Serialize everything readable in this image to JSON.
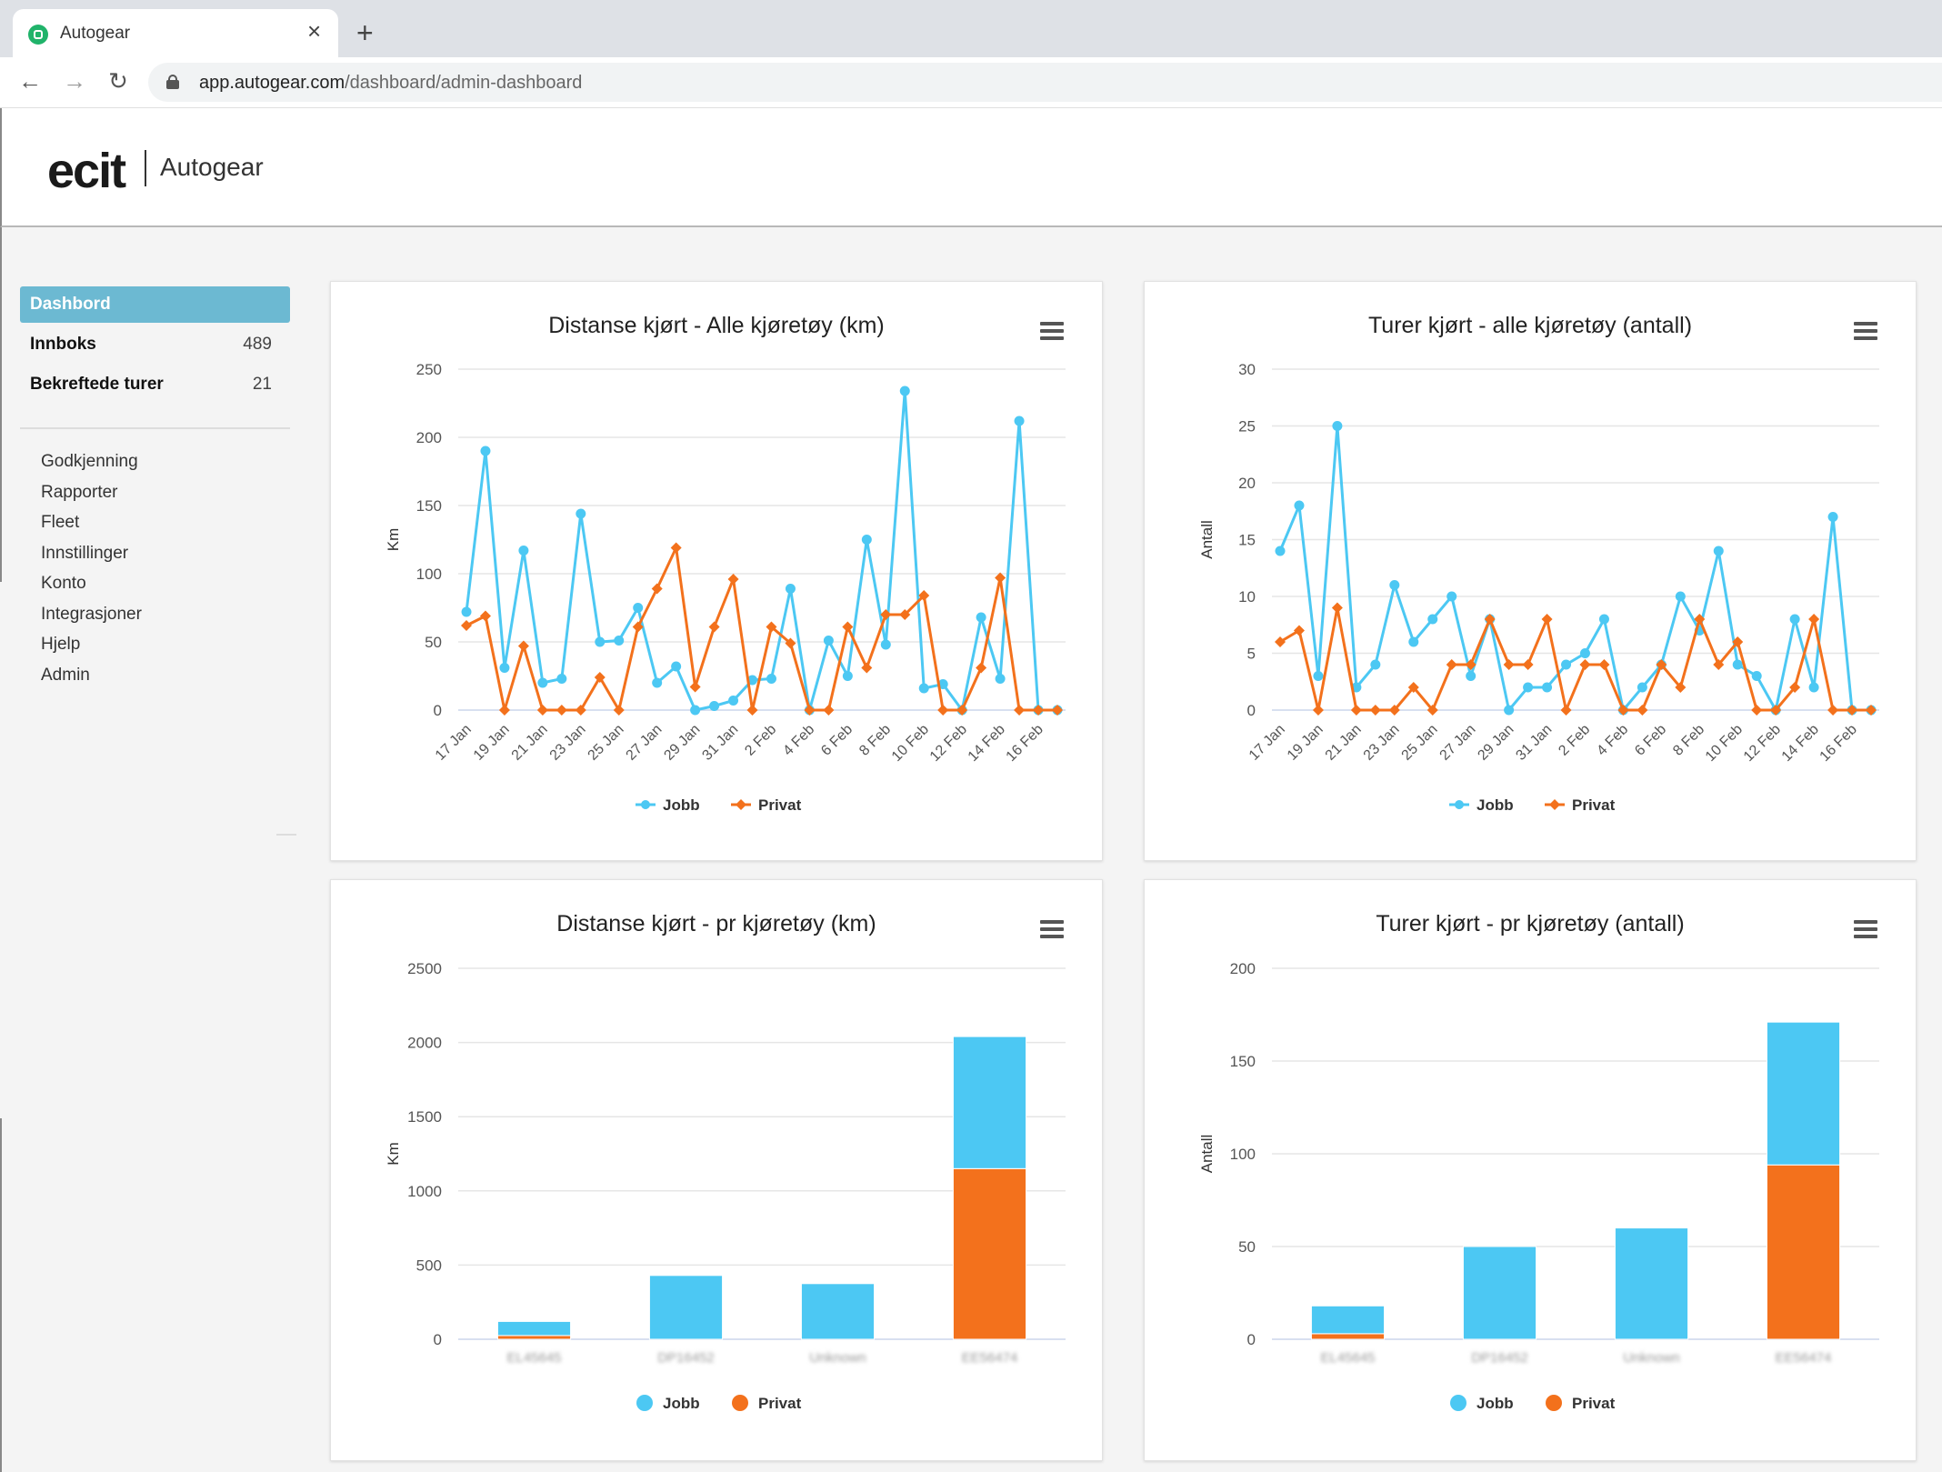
{
  "browser": {
    "tab_title": "Autogear",
    "url_host": "app.autogear.com",
    "url_path": "/dashboard/admin-dashboard"
  },
  "header": {
    "logo": "ecit",
    "app_name": "Autogear"
  },
  "sidebar": {
    "active": "Dashbord",
    "counters": [
      {
        "label": "Innboks",
        "count": "489"
      },
      {
        "label": "Bekreftede turer",
        "count": "21"
      }
    ],
    "links": [
      "Godkjenning",
      "Rapporter",
      "Fleet",
      "Innstillinger",
      "Konto",
      "Integrasjoner",
      "Hjelp",
      "Admin"
    ]
  },
  "colors": {
    "jobb": "#4cc8f3",
    "privat": "#f3711c",
    "grid": "#e6e6e6",
    "active_nav": "#6cb9d2"
  },
  "icons": {
    "chart_menu": "hamburger-menu-icon",
    "favicon": "autogear-favicon-icon"
  },
  "chart_data": [
    {
      "type": "line",
      "title": "Distanse kjørt - Alle kjøretøy (km)",
      "ylabel": "Km",
      "ylim": [
        0,
        250
      ],
      "yticks": [
        0,
        50,
        100,
        150,
        200,
        250
      ],
      "x": [
        "17 Jan",
        "18 Jan",
        "19 Jan",
        "20 Jan",
        "21 Jan",
        "22 Jan",
        "23 Jan",
        "24 Jan",
        "25 Jan",
        "26 Jan",
        "27 Jan",
        "28 Jan",
        "29 Jan",
        "30 Jan",
        "31 Jan",
        "1 Feb",
        "2 Feb",
        "3 Feb",
        "4 Feb",
        "5 Feb",
        "6 Feb",
        "7 Feb",
        "8 Feb",
        "9 Feb",
        "10 Feb",
        "11 Feb",
        "12 Feb",
        "13 Feb",
        "14 Feb",
        "15 Feb",
        "16 Feb",
        "17 Feb"
      ],
      "xtick_labels": [
        "17 Jan",
        "19 Jan",
        "21 Jan",
        "23 Jan",
        "25 Jan",
        "27 Jan",
        "29 Jan",
        "31 Jan",
        "2 Feb",
        "4 Feb",
        "6 Feb",
        "8 Feb",
        "10 Feb",
        "12 Feb",
        "14 Feb",
        "16 Feb"
      ],
      "series": [
        {
          "name": "Jobb",
          "values": [
            72,
            190,
            31,
            117,
            20,
            23,
            144,
            50,
            51,
            75,
            20,
            32,
            0,
            3,
            7,
            22,
            23,
            89,
            0,
            51,
            25,
            125,
            48,
            234,
            16,
            19,
            0,
            68,
            23,
            212,
            0,
            0
          ]
        },
        {
          "name": "Privat",
          "values": [
            62,
            69,
            0,
            47,
            0,
            0,
            0,
            24,
            0,
            61,
            89,
            119,
            17,
            61,
            96,
            0,
            61,
            49,
            0,
            0,
            61,
            31,
            70,
            70,
            84,
            0,
            0,
            31,
            97,
            0,
            0,
            0
          ]
        }
      ],
      "legend": "bottom-center"
    },
    {
      "type": "line",
      "title": "Turer kjørt - alle kjøretøy (antall)",
      "ylabel": "Antall",
      "ylim": [
        0,
        30
      ],
      "yticks": [
        0,
        5,
        10,
        15,
        20,
        25,
        30
      ],
      "x": [
        "17 Jan",
        "18 Jan",
        "19 Jan",
        "20 Jan",
        "21 Jan",
        "22 Jan",
        "23 Jan",
        "24 Jan",
        "25 Jan",
        "26 Jan",
        "27 Jan",
        "28 Jan",
        "29 Jan",
        "30 Jan",
        "31 Jan",
        "1 Feb",
        "2 Feb",
        "3 Feb",
        "4 Feb",
        "5 Feb",
        "6 Feb",
        "7 Feb",
        "8 Feb",
        "9 Feb",
        "10 Feb",
        "11 Feb",
        "12 Feb",
        "13 Feb",
        "14 Feb",
        "15 Feb",
        "16 Feb",
        "17 Feb"
      ],
      "xtick_labels": [
        "17 Jan",
        "19 Jan",
        "21 Jan",
        "23 Jan",
        "25 Jan",
        "27 Jan",
        "29 Jan",
        "31 Jan",
        "2 Feb",
        "4 Feb",
        "6 Feb",
        "8 Feb",
        "10 Feb",
        "12 Feb",
        "14 Feb",
        "16 Feb"
      ],
      "series": [
        {
          "name": "Jobb",
          "values": [
            14,
            18,
            3,
            25,
            2,
            4,
            11,
            6,
            8,
            10,
            3,
            8,
            0,
            2,
            2,
            4,
            5,
            8,
            0,
            2,
            4,
            10,
            7,
            14,
            4,
            3,
            0,
            8,
            2,
            17,
            0,
            0
          ]
        },
        {
          "name": "Privat",
          "values": [
            6,
            7,
            0,
            9,
            0,
            0,
            0,
            2,
            0,
            4,
            4,
            8,
            4,
            4,
            8,
            0,
            4,
            4,
            0,
            0,
            4,
            2,
            8,
            4,
            6,
            0,
            0,
            2,
            8,
            0,
            0,
            0
          ]
        }
      ],
      "legend": "bottom-center"
    },
    {
      "type": "bar",
      "stacked": true,
      "title": "Distanse kjørt - pr kjøretøy (km)",
      "ylabel": "Km",
      "ylim": [
        0,
        2500
      ],
      "yticks": [
        0,
        500,
        1000,
        1500,
        2000,
        2500
      ],
      "categories": [
        "EL45645",
        "DP16452",
        "Unknown",
        "EE56474"
      ],
      "series": [
        {
          "name": "Privat",
          "values": [
            25,
            0,
            0,
            1150
          ]
        },
        {
          "name": "Jobb",
          "values": [
            95,
            430,
            375,
            890
          ]
        }
      ],
      "legend": "bottom-center"
    },
    {
      "type": "bar",
      "stacked": true,
      "title": "Turer kjørt - pr kjøretøy (antall)",
      "ylabel": "Antall",
      "ylim": [
        0,
        200
      ],
      "yticks": [
        0,
        50,
        100,
        150,
        200
      ],
      "categories": [
        "EL45645",
        "DP16452",
        "Unknown",
        "EE56474"
      ],
      "series": [
        {
          "name": "Privat",
          "values": [
            3,
            0,
            0,
            94
          ]
        },
        {
          "name": "Jobb",
          "values": [
            15,
            50,
            60,
            77
          ]
        }
      ],
      "legend": "bottom-center"
    }
  ]
}
